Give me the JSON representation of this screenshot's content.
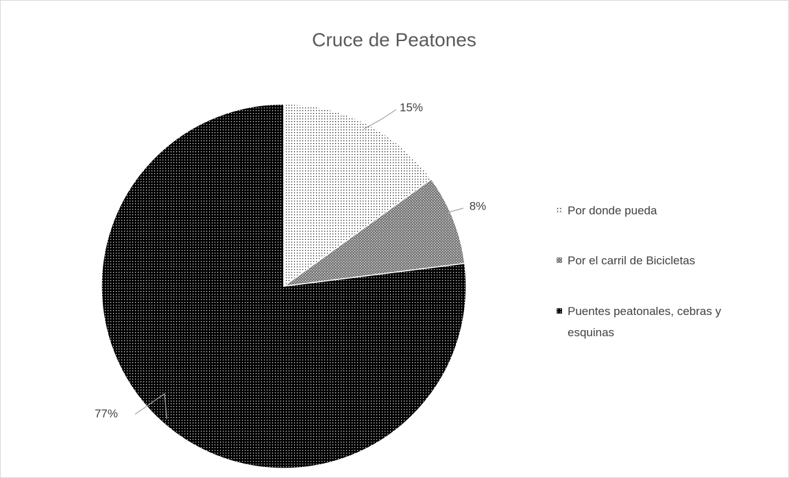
{
  "chart_data": {
    "type": "pie",
    "title": "Cruce de Peatones",
    "categories": [
      "Por donde pueda",
      "Por el carril de Bicicletas",
      "Puentes peatonales, cebras y esquinas"
    ],
    "values": [
      15,
      8,
      77
    ],
    "value_labels": [
      "15%",
      "8%",
      "77%"
    ],
    "colors": [
      "#ffffff",
      "#7a7a7a",
      "#000000"
    ],
    "legend": "right"
  }
}
